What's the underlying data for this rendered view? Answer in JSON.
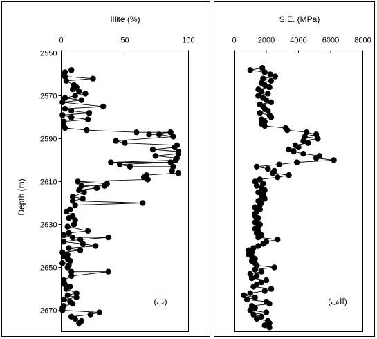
{
  "chart_data": [
    {
      "type": "scatter",
      "title": "Illite (%)",
      "xlabel": "Illite (%)",
      "ylabel": "Depth (m)",
      "annotation": "(ب)",
      "xlim": [
        0,
        100
      ],
      "ylim": [
        2550,
        2680
      ],
      "xticks": [
        "0",
        "50",
        "100"
      ],
      "yticks": [
        "2550",
        "2570",
        "2590",
        "2610",
        "2630",
        "2650",
        "2670"
      ],
      "series": [
        {
          "connected": true,
          "points": [
            [
              8,
              2558
            ],
            [
              3,
              2559
            ],
            [
              2,
              2560
            ],
            [
              3,
              2561
            ],
            [
              25,
              2562
            ],
            [
              4,
              2563
            ],
            [
              10,
              2565
            ],
            [
              12,
              2566
            ],
            [
              9,
              2567
            ],
            [
              14,
              2568
            ],
            [
              19,
              2569
            ],
            [
              11,
              2570
            ],
            [
              3,
              2571
            ],
            [
              16,
              2572
            ],
            [
              1,
              2573
            ],
            [
              33,
              2575
            ],
            [
              3,
              2576
            ],
            [
              8,
              2577
            ],
            [
              22,
              2578
            ],
            [
              1,
              2579
            ],
            [
              8,
              2580
            ],
            [
              21,
              2581
            ],
            [
              2,
              2582
            ],
            [
              2,
              2584
            ],
            [
              3,
              2585
            ],
            [
              20,
              2586
            ],
            [
              59,
              2587
            ],
            [
              86,
              2587
            ],
            [
              69,
              2588
            ],
            [
              77,
              2588
            ],
            [
              88,
              2589
            ],
            [
              43,
              2591
            ],
            [
              50,
              2592
            ],
            [
              91,
              2593
            ],
            [
              89,
              2594
            ],
            [
              72,
              2595
            ],
            [
              92,
              2596
            ],
            [
              92,
              2597
            ],
            [
              74,
              2598
            ],
            [
              91,
              2599
            ],
            [
              90,
              2600
            ],
            [
              39,
              2601
            ],
            [
              86,
              2601
            ],
            [
              46,
              2602
            ],
            [
              54,
              2603
            ],
            [
              88,
              2603
            ],
            [
              87,
              2605
            ],
            [
              92,
              2606
            ],
            [
              67,
              2607
            ],
            [
              65,
              2608
            ],
            [
              68,
              2609
            ],
            [
              13,
              2610
            ],
            [
              36,
              2611
            ],
            [
              34,
              2612
            ],
            [
              16,
              2612
            ],
            [
              28,
              2613
            ],
            [
              14,
              2614
            ],
            [
              18,
              2615
            ],
            [
              9,
              2617
            ],
            [
              17,
              2618
            ],
            [
              9,
              2619
            ],
            [
              64,
              2620
            ],
            [
              11,
              2621
            ],
            [
              7,
              2623
            ],
            [
              4,
              2624
            ],
            [
              9,
              2626
            ],
            [
              6,
              2627
            ],
            [
              11,
              2628
            ],
            [
              10,
              2630
            ],
            [
              5,
              2631
            ],
            [
              21,
              2633
            ],
            [
              6,
              2634
            ],
            [
              2,
              2635
            ],
            [
              9,
              2636
            ],
            [
              37,
              2636
            ],
            [
              15,
              2637
            ],
            [
              2,
              2638
            ],
            [
              17,
              2639
            ],
            [
              27,
              2640
            ],
            [
              6,
              2641
            ],
            [
              15,
              2642
            ],
            [
              1,
              2643
            ],
            [
              5,
              2644
            ],
            [
              2,
              2645
            ],
            [
              5,
              2646
            ],
            [
              7,
              2647
            ],
            [
              1,
              2648
            ],
            [
              6,
              2649
            ],
            [
              5,
              2650
            ],
            [
              8,
              2652
            ],
            [
              37,
              2652
            ],
            [
              8,
              2654
            ],
            [
              2,
              2656
            ],
            [
              2,
              2657
            ],
            [
              3,
              2658
            ],
            [
              7,
              2659
            ],
            [
              4,
              2660
            ],
            [
              12,
              2662
            ],
            [
              5,
              2663
            ],
            [
              12,
              2664
            ],
            [
              2,
              2665
            ],
            [
              7,
              2666
            ],
            [
              9,
              2667
            ],
            [
              2,
              2668
            ],
            [
              1,
              2669
            ],
            [
              1,
              2670
            ],
            [
              30,
              2671
            ],
            [
              23,
              2672
            ],
            [
              8,
              2673
            ],
            [
              11,
              2674
            ],
            [
              16,
              2675
            ],
            [
              14,
              2676
            ]
          ]
        }
      ]
    },
    {
      "type": "scatter",
      "title": "S.E. (MPa)",
      "xlabel": "S.E. (MPa)",
      "ylabel": "",
      "annotation": "(الف)",
      "xlim": [
        0,
        8000
      ],
      "ylim": [
        2550,
        2680
      ],
      "xticks": [
        "0",
        "2000",
        "4000",
        "6000",
        "8000"
      ],
      "series": [
        {
          "connected": true,
          "points": [
            [
              1750,
              2557
            ],
            [
              1000,
              2558
            ],
            [
              1900,
              2559
            ],
            [
              2250,
              2560
            ],
            [
              2550,
              2561
            ],
            [
              1800,
              2562
            ],
            [
              2300,
              2563
            ],
            [
              1700,
              2564
            ],
            [
              1900,
              2565
            ],
            [
              2200,
              2566
            ],
            [
              1500,
              2567
            ],
            [
              1700,
              2568
            ],
            [
              2100,
              2569
            ],
            [
              1500,
              2570
            ],
            [
              1800,
              2571
            ],
            [
              2000,
              2572
            ],
            [
              2300,
              2573
            ],
            [
              1600,
              2574
            ],
            [
              1800,
              2575
            ],
            [
              1900,
              2576
            ],
            [
              2100,
              2577
            ],
            [
              1600,
              2578
            ],
            [
              2200,
              2579
            ],
            [
              2300,
              2580
            ],
            [
              1700,
              2581
            ],
            [
              1900,
              2582
            ],
            [
              1700,
              2583
            ],
            [
              1900,
              2584
            ],
            [
              3200,
              2585
            ],
            [
              3300,
              2586
            ],
            [
              4500,
              2587
            ],
            [
              5100,
              2588
            ],
            [
              4400,
              2589
            ],
            [
              5200,
              2590
            ],
            [
              4300,
              2591
            ],
            [
              4600,
              2592
            ],
            [
              3800,
              2593
            ],
            [
              4000,
              2594
            ],
            [
              3400,
              2595
            ],
            [
              3700,
              2596
            ],
            [
              4300,
              2597
            ],
            [
              5300,
              2598
            ],
            [
              5100,
              2599
            ],
            [
              6200,
              2600
            ],
            [
              3900,
              2601
            ],
            [
              2800,
              2602
            ],
            [
              1400,
              2603
            ],
            [
              2100,
              2604
            ],
            [
              2500,
              2605
            ],
            [
              2400,
              2606
            ],
            [
              3400,
              2607
            ],
            [
              2700,
              2608
            ],
            [
              1600,
              2609
            ],
            [
              1300,
              2610
            ],
            [
              1800,
              2611
            ],
            [
              1400,
              2612
            ],
            [
              1700,
              2613
            ],
            [
              1900,
              2614
            ],
            [
              1500,
              2615
            ],
            [
              1800,
              2616
            ],
            [
              1700,
              2617
            ],
            [
              1900,
              2618
            ],
            [
              1500,
              2619
            ],
            [
              1700,
              2620
            ],
            [
              1600,
              2621
            ],
            [
              1300,
              2622
            ],
            [
              1600,
              2623
            ],
            [
              1400,
              2624
            ],
            [
              1300,
              2625
            ],
            [
              1300,
              2626
            ],
            [
              1500,
              2627
            ],
            [
              1400,
              2628
            ],
            [
              1300,
              2629
            ],
            [
              1600,
              2630
            ],
            [
              1500,
              2631
            ],
            [
              1300,
              2632
            ],
            [
              1500,
              2633
            ],
            [
              1400,
              2634
            ],
            [
              1700,
              2635
            ],
            [
              1500,
              2636
            ],
            [
              2700,
              2637
            ],
            [
              2000,
              2638
            ],
            [
              1800,
              2639
            ],
            [
              1500,
              2640
            ],
            [
              1200,
              2641
            ],
            [
              900,
              2642
            ],
            [
              1100,
              2643
            ],
            [
              900,
              2644
            ],
            [
              1100,
              2645
            ],
            [
              1300,
              2646
            ],
            [
              1100,
              2647
            ],
            [
              1300,
              2648
            ],
            [
              1400,
              2649
            ],
            [
              2500,
              2650
            ],
            [
              1300,
              2651
            ],
            [
              1700,
              2652
            ],
            [
              1000,
              2653
            ],
            [
              1400,
              2654
            ],
            [
              1100,
              2655
            ],
            [
              2000,
              2656
            ],
            [
              1700,
              2657
            ],
            [
              1400,
              2658
            ],
            [
              1200,
              2659
            ],
            [
              2300,
              2660
            ],
            [
              1900,
              2661
            ],
            [
              1000,
              2662
            ],
            [
              600,
              2663
            ],
            [
              1300,
              2664
            ],
            [
              800,
              2665
            ],
            [
              2000,
              2666
            ],
            [
              2200,
              2667
            ],
            [
              1100,
              2668
            ],
            [
              1300,
              2669
            ],
            [
              1000,
              2670
            ],
            [
              2000,
              2671
            ],
            [
              1200,
              2672
            ],
            [
              1700,
              2673
            ],
            [
              1400,
              2674
            ],
            [
              2100,
              2675
            ],
            [
              2200,
              2676
            ],
            [
              1900,
              2677
            ],
            [
              2200,
              2678
            ]
          ]
        }
      ]
    }
  ]
}
